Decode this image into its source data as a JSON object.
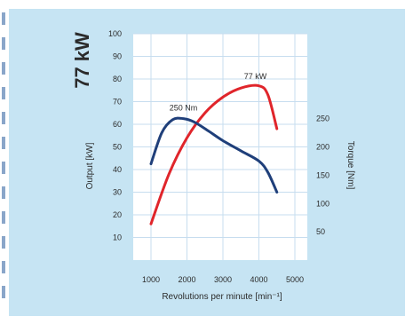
{
  "badge": "77 kW",
  "chart_data": {
    "type": "line",
    "xlabel": "Revolutions per minute [min⁻¹]",
    "ylabel_left": "Output [kW]",
    "ylabel_right": "Torque [Nm]",
    "xlim": [
      0,
      5000
    ],
    "xticks": [
      1000,
      2000,
      3000,
      4000,
      5000
    ],
    "ylim": [
      0,
      100
    ],
    "yticks": [
      10,
      20,
      30,
      40,
      50,
      60,
      70,
      80,
      90,
      100
    ],
    "y2lim": [
      0,
      400
    ],
    "y2ticks": [
      50,
      100,
      150,
      200,
      250
    ],
    "grid": true,
    "series": [
      {
        "name": "",
        "axis": "left",
        "color": "#e0252b",
        "x": [
          1000,
          1500,
          2000,
          2500,
          3000,
          3500,
          4000,
          4250,
          4500
        ],
        "y": [
          16,
          38,
          54,
          65,
          72,
          76,
          77,
          73,
          58
        ]
      },
      {
        "name": "",
        "axis": "right",
        "color": "#1f3f7a",
        "x": [
          1000,
          1300,
          1600,
          1900,
          2200,
          2600,
          3000,
          3500,
          4000,
          4250,
          4500
        ],
        "y": [
          170,
          225,
          248,
          250,
          244,
          228,
          211,
          193,
          175,
          155,
          120
        ]
      }
    ],
    "annotations": [
      {
        "text": "250 Nm",
        "x": 1900,
        "y": 66
      },
      {
        "text": "77 kW",
        "x": 3900,
        "y": 80
      }
    ]
  }
}
